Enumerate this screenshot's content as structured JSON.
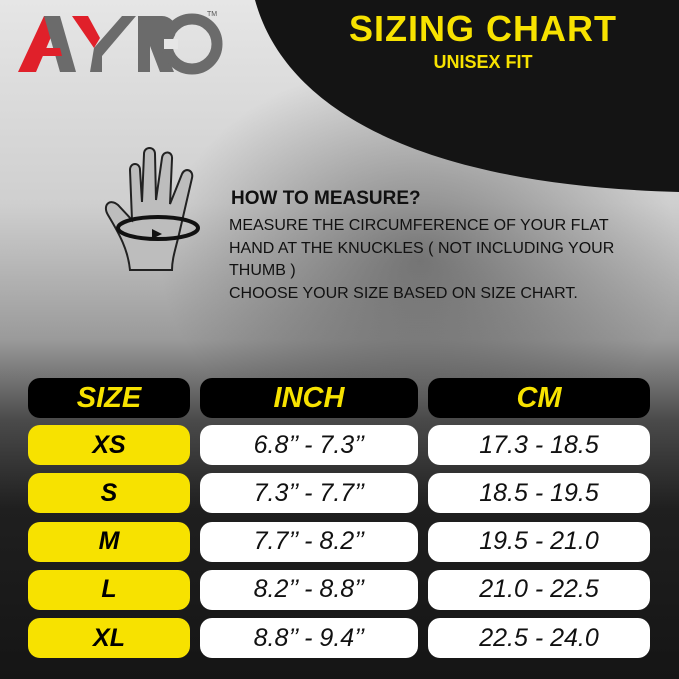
{
  "brand": {
    "logo_text": "AYRO",
    "trademark": "TM"
  },
  "header": {
    "title": "SIZING CHART",
    "subtitle": "UNISEX FIT"
  },
  "how_to_measure": {
    "heading": "HOW TO MEASURE?",
    "lines": [
      "MEASURE THE CIRCUMFERENCE OF YOUR FLAT",
      "HAND AT THE KNUCKLES ( NOT INCLUDING YOUR",
      "THUMB )",
      "CHOOSE YOUR SIZE BASED ON SIZE CHART."
    ]
  },
  "table": {
    "headers": [
      "SIZE",
      "INCH",
      "CM"
    ],
    "rows": [
      {
        "size": "XS",
        "inch": "6.8’’ - 7.3’’",
        "cm": "17.3 - 18.5"
      },
      {
        "size": "S",
        "inch": "7.3’’ - 7.7’’",
        "cm": "18.5 - 19.5"
      },
      {
        "size": "M",
        "inch": "7.7’’ - 8.2’’",
        "cm": "19.5 - 21.0"
      },
      {
        "size": "L",
        "inch": "8.2’’ - 8.8’’",
        "cm": "21.0 - 22.5"
      },
      {
        "size": "XL",
        "inch": "8.8’’ - 9.4’’",
        "cm": "22.5 - 24.0"
      }
    ]
  },
  "colors": {
    "accent": "#f7e200",
    "logo_red": "#e0202a",
    "logo_gray": "#6b6b6b"
  }
}
